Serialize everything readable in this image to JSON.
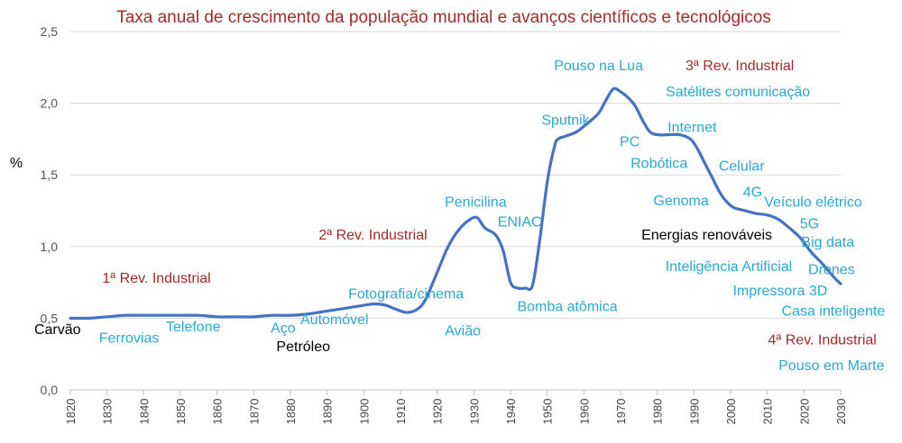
{
  "chart_data": {
    "type": "line",
    "title": "Taxa anual de crescimento da população mundial e avanços científicos e tecnológicos",
    "ylabel": "%",
    "xlabel": "",
    "ylim": [
      0,
      2.5
    ],
    "xlim": [
      1820,
      2030
    ],
    "grid": true,
    "line_color": "#4472c4",
    "y_ticks": [
      "0,0",
      "0,5",
      "1,0",
      "1,5",
      "2,0",
      "2,5"
    ],
    "x_ticks": [
      "1820",
      "1830",
      "1840",
      "1850",
      "1860",
      "1870",
      "1880",
      "1890",
      "1900",
      "1910",
      "1920",
      "1930",
      "1940",
      "1950",
      "1960",
      "1970",
      "1980",
      "1990",
      "2000",
      "2010",
      "2020",
      "2030"
    ],
    "series": [
      {
        "x": [
          1820,
          1825,
          1830,
          1835,
          1840,
          1845,
          1850,
          1855,
          1860,
          1865,
          1870,
          1875,
          1880,
          1885,
          1890,
          1895,
          1900,
          1903,
          1906,
          1909,
          1912,
          1915,
          1917,
          1920,
          1923,
          1926,
          1929,
          1931,
          1933,
          1936,
          1938,
          1940,
          1942,
          1944,
          1946,
          1948,
          1950,
          1952,
          1953,
          1955,
          1958,
          1961,
          1964,
          1966,
          1968,
          1970,
          1972,
          1974,
          1976,
          1978,
          1980,
          1983,
          1986,
          1989,
          1991,
          1993,
          1995,
          1997,
          1999,
          2001,
          2004,
          2007,
          2010,
          2013,
          2016,
          2019,
          2022,
          2025,
          2028,
          2030
        ],
        "y": [
          0.5,
          0.5,
          0.51,
          0.52,
          0.52,
          0.52,
          0.52,
          0.52,
          0.51,
          0.51,
          0.51,
          0.52,
          0.52,
          0.53,
          0.55,
          0.57,
          0.59,
          0.6,
          0.59,
          0.56,
          0.54,
          0.57,
          0.64,
          0.82,
          1.0,
          1.12,
          1.19,
          1.2,
          1.13,
          1.08,
          0.97,
          0.75,
          0.71,
          0.71,
          0.73,
          1.05,
          1.45,
          1.7,
          1.75,
          1.77,
          1.8,
          1.86,
          1.93,
          2.02,
          2.1,
          2.08,
          2.04,
          1.98,
          1.88,
          1.8,
          1.78,
          1.78,
          1.78,
          1.75,
          1.68,
          1.58,
          1.48,
          1.38,
          1.31,
          1.27,
          1.25,
          1.23,
          1.22,
          1.19,
          1.13,
          1.06,
          0.96,
          0.88,
          0.79,
          0.74
        ]
      }
    ],
    "annotations": [
      {
        "text": "Carvão",
        "x": 1816.5,
        "y": 0.42,
        "color": "#000000",
        "anchor": "middle"
      },
      {
        "text": "Ferrovias",
        "x": 1836,
        "y": 0.36,
        "color": "#2ba8d0",
        "anchor": "middle"
      },
      {
        "text": "Telefone",
        "x": 1853.5,
        "y": 0.44,
        "color": "#2ba8d0",
        "anchor": "middle"
      },
      {
        "text": "Aço",
        "x": 1878,
        "y": 0.43,
        "color": "#2ba8d0",
        "anchor": "middle"
      },
      {
        "text": "Petróleo",
        "x": 1883.5,
        "y": 0.3,
        "color": "#000000",
        "anchor": "middle"
      },
      {
        "text": "Automóvel",
        "x": 1892,
        "y": 0.49,
        "color": "#2ba8d0",
        "anchor": "middle"
      },
      {
        "text": "Avião",
        "x": 1927,
        "y": 0.41,
        "color": "#2ba8d0",
        "anchor": "middle"
      },
      {
        "text": "Fotografia/cinema",
        "x": 1911.5,
        "y": 0.67,
        "color": "#2ba8d0",
        "anchor": "middle"
      },
      {
        "text": "1ª Rev. Industrial",
        "x": 1843.5,
        "y": 0.78,
        "color": "#a52a2a",
        "anchor": "middle"
      },
      {
        "text": "2ª Rev. Industrial",
        "x": 1902.5,
        "y": 1.08,
        "color": "#a52a2a",
        "anchor": "middle"
      },
      {
        "text": "Penicilina",
        "x": 1930.5,
        "y": 1.31,
        "color": "#2ba8d0",
        "anchor": "middle"
      },
      {
        "text": "ENIAC",
        "x": 1942.5,
        "y": 1.17,
        "color": "#2ba8d0",
        "anchor": "middle"
      },
      {
        "text": "Bomba atômica",
        "x": 1955.5,
        "y": 0.58,
        "color": "#2ba8d0",
        "anchor": "middle"
      },
      {
        "text": "Sputnik",
        "x": 1955,
        "y": 1.88,
        "color": "#2ba8d0",
        "anchor": "middle"
      },
      {
        "text": "Pouso na Lua",
        "x": 1964,
        "y": 2.26,
        "color": "#2ba8d0",
        "anchor": "middle"
      },
      {
        "text": "3ª Rev. Industrial",
        "x": 2002.5,
        "y": 2.26,
        "color": "#a52a2a",
        "anchor": "middle"
      },
      {
        "text": "Satélites comunicação",
        "x": 2002,
        "y": 2.08,
        "color": "#2ba8d0",
        "anchor": "middle"
      },
      {
        "text": "PC",
        "x": 1972.5,
        "y": 1.73,
        "color": "#2ba8d0",
        "anchor": "middle"
      },
      {
        "text": "Internet",
        "x": 1989.5,
        "y": 1.83,
        "color": "#2ba8d0",
        "anchor": "middle"
      },
      {
        "text": "Robótica",
        "x": 1980.5,
        "y": 1.58,
        "color": "#2ba8d0",
        "anchor": "middle"
      },
      {
        "text": "Celular",
        "x": 2003,
        "y": 1.56,
        "color": "#2ba8d0",
        "anchor": "middle"
      },
      {
        "text": "4G",
        "x": 2006,
        "y": 1.38,
        "color": "#2ba8d0",
        "anchor": "middle"
      },
      {
        "text": "Genoma",
        "x": 1986.5,
        "y": 1.32,
        "color": "#2ba8d0",
        "anchor": "middle"
      },
      {
        "text": "Veículo elétrico",
        "x": 2022.5,
        "y": 1.31,
        "color": "#2ba8d0",
        "anchor": "middle"
      },
      {
        "text": "5G",
        "x": 2021.5,
        "y": 1.16,
        "color": "#2ba8d0",
        "anchor": "middle"
      },
      {
        "text": "Energias renováveis",
        "x": 1993.5,
        "y": 1.08,
        "color": "#000000",
        "anchor": "middle"
      },
      {
        "text": "Big data",
        "x": 2026.5,
        "y": 1.03,
        "color": "#2ba8d0",
        "anchor": "middle"
      },
      {
        "text": "Inteligência Artificial",
        "x": 1999.5,
        "y": 0.86,
        "color": "#2ba8d0",
        "anchor": "middle"
      },
      {
        "text": "Drones",
        "x": 2027.5,
        "y": 0.84,
        "color": "#2ba8d0",
        "anchor": "middle"
      },
      {
        "text": "Impressora 3D",
        "x": 2013.5,
        "y": 0.69,
        "color": "#2ba8d0",
        "anchor": "middle"
      },
      {
        "text": "Casa inteligente",
        "x": 2028,
        "y": 0.55,
        "color": "#2ba8d0",
        "anchor": "middle"
      },
      {
        "text": "4ª Rev. Industrial",
        "x": 2025,
        "y": 0.35,
        "color": "#a52a2a",
        "anchor": "middle"
      },
      {
        "text": "Pouso em Marte",
        "x": 2027.5,
        "y": 0.17,
        "color": "#2ba8d0",
        "anchor": "middle"
      }
    ]
  }
}
